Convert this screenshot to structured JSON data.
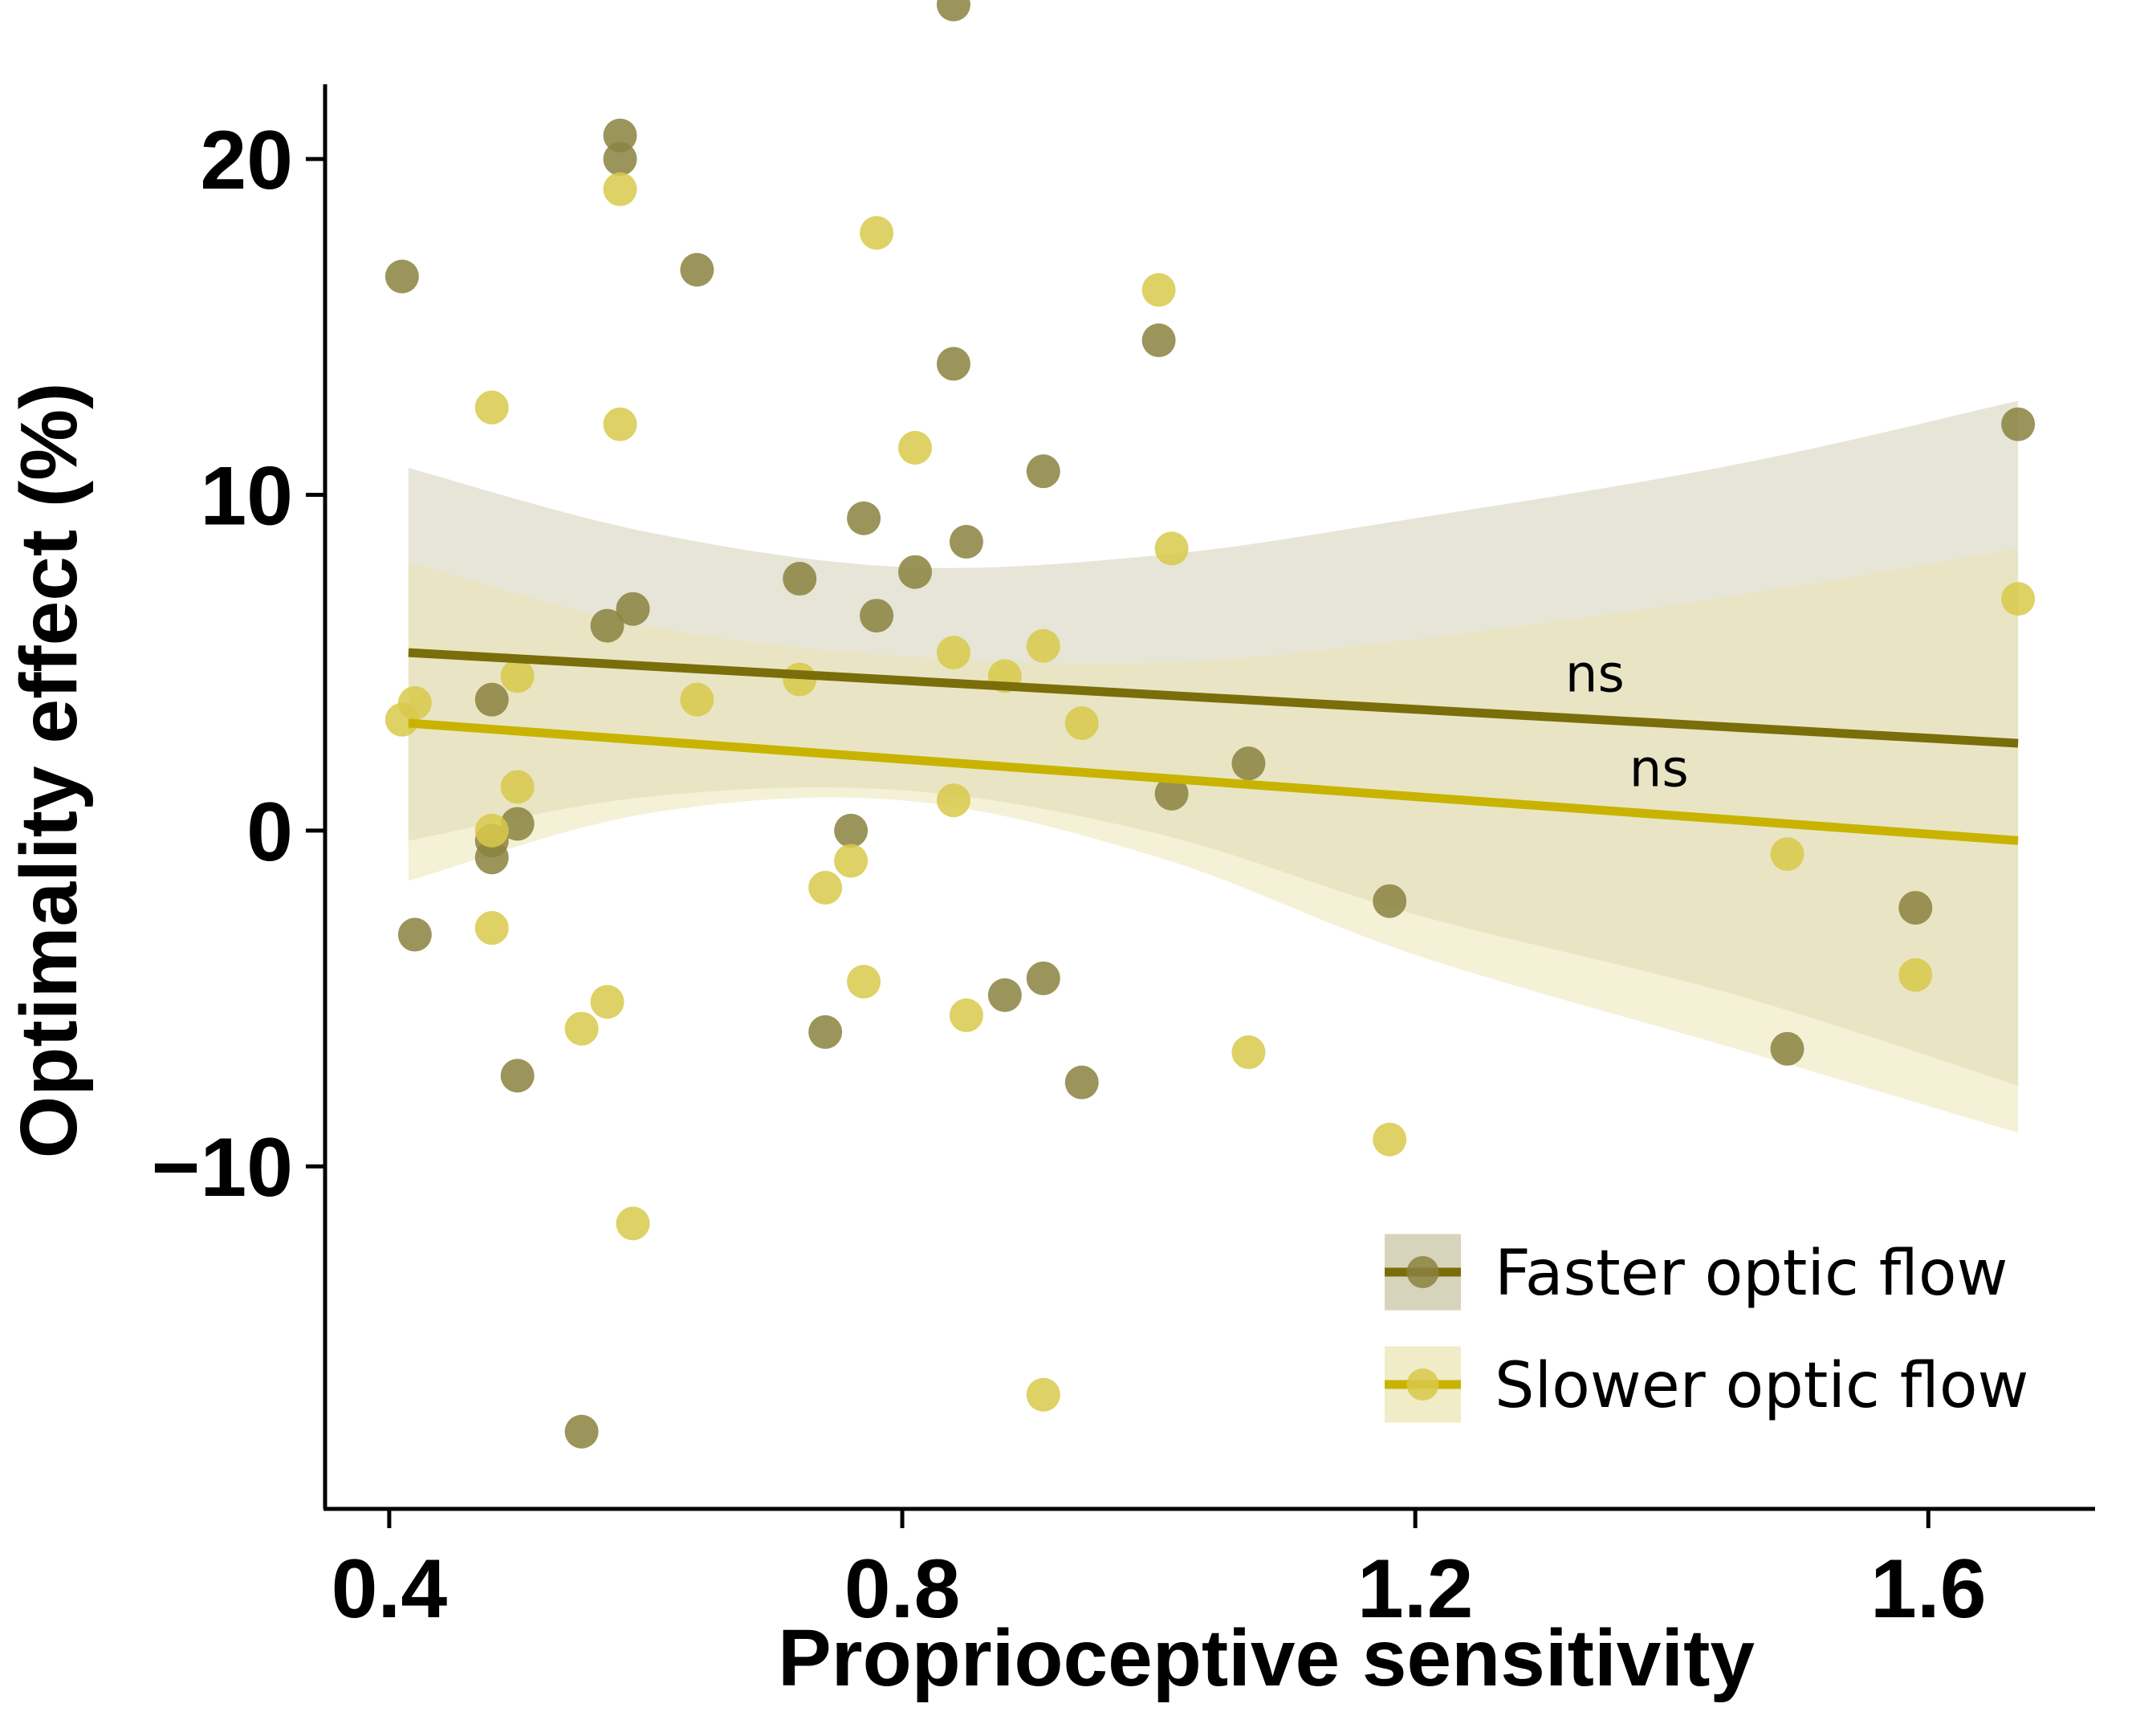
{
  "chart_data": {
    "type": "scatter",
    "title": "",
    "xlabel": "Proprioceptive sensitivity",
    "ylabel": "Optimality effect (%)",
    "xlim": [
      0.35,
      1.73
    ],
    "ylim": [
      -20.2,
      23.3
    ],
    "xticks": [
      0.4,
      0.8,
      1.2,
      1.6
    ],
    "xtick_labels": [
      "0.4",
      "0.8",
      "1.2",
      "1.6"
    ],
    "yticks": [
      -10,
      0,
      10,
      20
    ],
    "ytick_labels": [
      "−10",
      "0",
      "10",
      "20"
    ],
    "grid": false,
    "legend_position": "bottom-right",
    "series": [
      {
        "name": "Faster optic flow",
        "color": "#7a6e0a",
        "point_color": "#8a8340",
        "band_color": "#c9c6a6",
        "points": [
          [
            0.41,
            16.5
          ],
          [
            0.42,
            -3.1
          ],
          [
            0.48,
            3.9
          ],
          [
            0.48,
            -0.3
          ],
          [
            0.48,
            -0.8
          ],
          [
            0.5,
            0.2
          ],
          [
            0.5,
            -7.3
          ],
          [
            0.55,
            -17.9
          ],
          [
            0.57,
            6.1
          ],
          [
            0.58,
            20.7
          ],
          [
            0.58,
            20.0
          ],
          [
            0.59,
            6.6
          ],
          [
            0.64,
            16.7
          ],
          [
            0.72,
            7.5
          ],
          [
            0.74,
            -6.0
          ],
          [
            0.76,
            0.0
          ],
          [
            0.77,
            9.3
          ],
          [
            0.78,
            6.4
          ],
          [
            0.81,
            7.7
          ],
          [
            0.84,
            13.9
          ],
          [
            0.84,
            24.6
          ],
          [
            0.85,
            8.6
          ],
          [
            0.88,
            -4.9
          ],
          [
            0.91,
            10.7
          ],
          [
            0.91,
            -4.4
          ],
          [
            0.94,
            -7.5
          ],
          [
            1.0,
            14.6
          ],
          [
            1.01,
            1.1
          ],
          [
            1.07,
            2.0
          ],
          [
            1.18,
            -2.1
          ],
          [
            1.49,
            -6.5
          ],
          [
            1.59,
            -2.3
          ],
          [
            1.67,
            12.1
          ]
        ],
        "fit": {
          "x": [
            0.415,
            1.67
          ],
          "y": [
            5.3,
            2.6
          ]
        },
        "ci_upper": [
          [
            0.415,
            10.8
          ],
          [
            0.6,
            8.9
          ],
          [
            0.8,
            7.85
          ],
          [
            1.0,
            8.2
          ],
          [
            1.2,
            9.3
          ],
          [
            1.45,
            10.9
          ],
          [
            1.67,
            12.8
          ]
        ],
        "ci_lower": [
          [
            0.415,
            -0.3
          ],
          [
            0.6,
            1.0
          ],
          [
            0.8,
            1.2
          ],
          [
            1.0,
            -0.1
          ],
          [
            1.2,
            -2.5
          ],
          [
            1.45,
            -4.9
          ],
          [
            1.67,
            -7.6
          ]
        ],
        "annotation": "ns"
      },
      {
        "name": "Slower optic flow",
        "color": "#c8b400",
        "point_color": "#d8c94a",
        "band_color": "#ebe6b5",
        "points": [
          [
            0.41,
            3.3
          ],
          [
            0.42,
            3.8
          ],
          [
            0.48,
            12.6
          ],
          [
            0.48,
            0.0
          ],
          [
            0.48,
            -2.9
          ],
          [
            0.5,
            4.6
          ],
          [
            0.5,
            1.3
          ],
          [
            0.55,
            -5.9
          ],
          [
            0.57,
            -5.1
          ],
          [
            0.58,
            19.1
          ],
          [
            0.58,
            12.1
          ],
          [
            0.59,
            -11.7
          ],
          [
            0.64,
            3.9
          ],
          [
            0.72,
            4.5
          ],
          [
            0.74,
            -1.7
          ],
          [
            0.76,
            -0.9
          ],
          [
            0.77,
            -4.5
          ],
          [
            0.78,
            17.8
          ],
          [
            0.81,
            11.4
          ],
          [
            0.84,
            5.3
          ],
          [
            0.84,
            0.9
          ],
          [
            0.85,
            -5.5
          ],
          [
            0.88,
            4.6
          ],
          [
            0.91,
            5.5
          ],
          [
            0.91,
            -16.8
          ],
          [
            0.94,
            3.2
          ],
          [
            1.0,
            16.1
          ],
          [
            1.01,
            8.4
          ],
          [
            1.07,
            -6.6
          ],
          [
            1.18,
            -9.2
          ],
          [
            1.49,
            -0.7
          ],
          [
            1.59,
            -4.3
          ],
          [
            1.67,
            6.9
          ]
        ],
        "fit": {
          "x": [
            0.415,
            1.67
          ],
          "y": [
            3.2,
            -0.3
          ]
        },
        "ci_upper": [
          [
            0.415,
            8.0
          ],
          [
            0.6,
            6.1
          ],
          [
            0.8,
            5.2
          ],
          [
            1.0,
            5.0
          ],
          [
            1.2,
            5.7
          ],
          [
            1.45,
            7.0
          ],
          [
            1.67,
            8.4
          ]
        ],
        "ci_lower": [
          [
            0.415,
            -1.5
          ],
          [
            0.6,
            0.5
          ],
          [
            0.8,
            0.9
          ],
          [
            1.0,
            -0.8
          ],
          [
            1.2,
            -3.7
          ],
          [
            1.45,
            -6.5
          ],
          [
            1.67,
            -9.0
          ]
        ],
        "annotation": "ns"
      }
    ]
  }
}
